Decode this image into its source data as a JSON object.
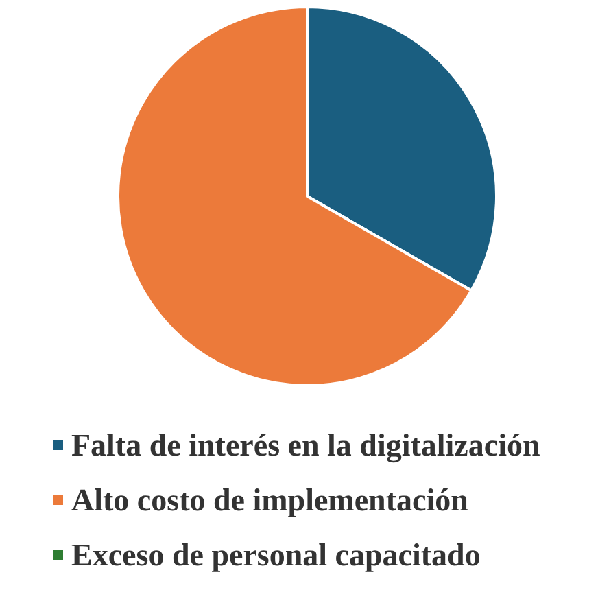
{
  "chart_data": {
    "type": "pie",
    "categories": [
      "Falta de interés en la digitalización",
      "Alto costo de implementación",
      "Exceso de personal capacitado"
    ],
    "values": [
      33.3,
      66.7,
      0
    ],
    "colors": [
      "#1a5e80",
      "#ec7a3a",
      "#2e7d32"
    ],
    "legend": "bottom"
  }
}
